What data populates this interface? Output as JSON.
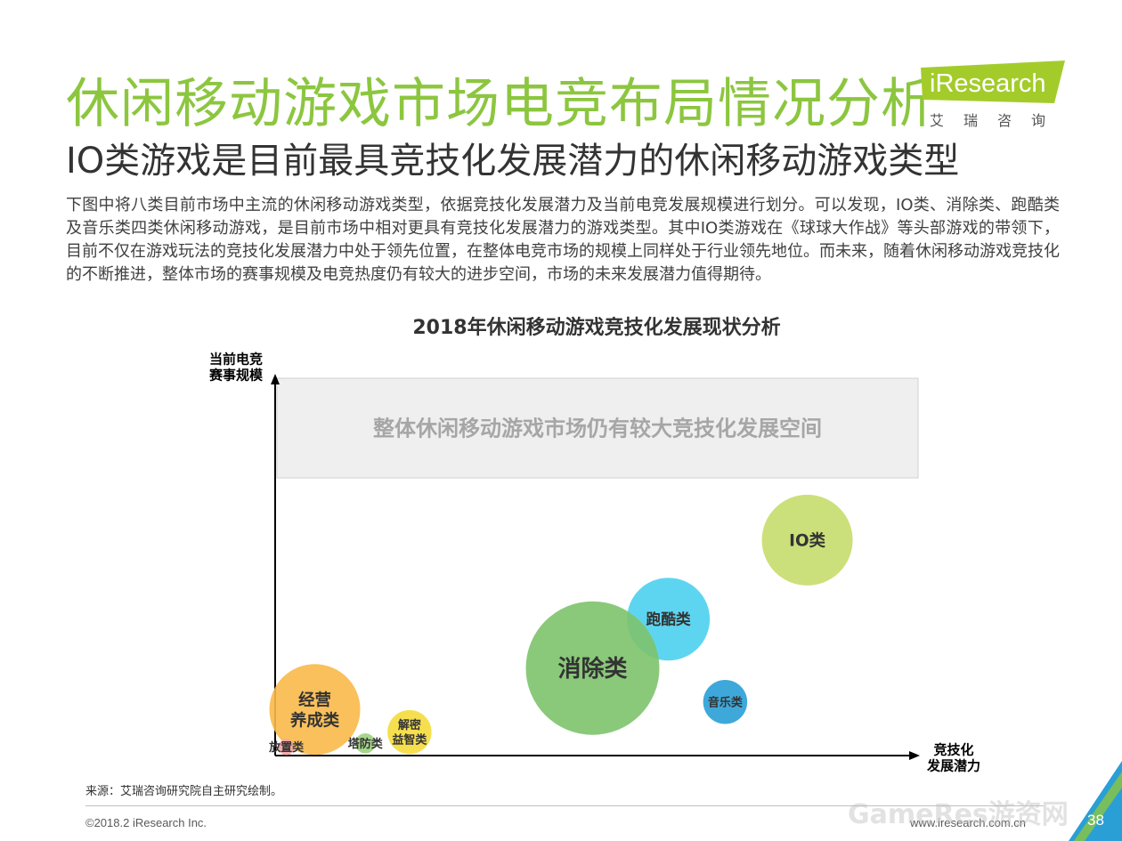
{
  "header": {
    "title": "休闲移动游戏市场电竞布局情况分析",
    "subtitle": "IO类游戏是目前最具竞技化发展潜力的休闲移动游戏类型"
  },
  "logo": {
    "brand": "iResearch",
    "chinese": "艾瑞咨询"
  },
  "intro_text": "下图中将八类目前市场中主流的休闲移动游戏类型，依据竞技化发展潜力及当前电竞发展规模进行划分。可以发现，IO类、消除类、跑酷类及音乐类四类休闲移动游戏，是目前市场中相对更具有竞技化发展潜力的游戏类型。其中IO类游戏在《球球大作战》等头部游戏的带领下，目前不仅在游戏玩法的竞技化发展潜力中处于领先位置，在整体电竞市场的规模上同样处于行业领先地位。而未来，随着休闲移动游戏竞技化的不断推进，整体市场的赛事规模及电竞热度仍有较大的进步空间，市场的未来发展潜力值得期待。",
  "chart_data": {
    "type": "scatter",
    "title": "2018年休闲移动游戏竞技化发展现状分析",
    "ylabel": [
      "当前电竞",
      "赛事规模"
    ],
    "xlabel": [
      "竞技化",
      "发展潜力"
    ],
    "xlim": [
      0,
      100
    ],
    "ylim": [
      0,
      100
    ],
    "grid": false,
    "annotation": "整体休闲移动游戏市场仍有较大竞技化发展空间",
    "points": [
      {
        "label": [
          "IO类"
        ],
        "x": 84,
        "y": 57,
        "size": 0.68,
        "color": "#c5dd6c"
      },
      {
        "label": [
          "跑酷类"
        ],
        "x": 62,
        "y": 36,
        "size": 0.62,
        "color": "#4dd0ee"
      },
      {
        "label": [
          "消除类"
        ],
        "x": 50,
        "y": 23,
        "size": 1.0,
        "color": "#7dc36b"
      },
      {
        "label": [
          "音乐类"
        ],
        "x": 71,
        "y": 14,
        "size": 0.33,
        "color": "#2a9fd6"
      },
      {
        "label": [
          "经营",
          "养成类"
        ],
        "x": 6,
        "y": 12,
        "size": 0.68,
        "color": "#f8b94a"
      },
      {
        "label": [
          "解密",
          "益智类"
        ],
        "x": 21,
        "y": 6,
        "size": 0.33,
        "color": "#f5dc3c"
      },
      {
        "label": [
          "塔防类"
        ],
        "x": 14,
        "y": 3,
        "size": 0.15,
        "color": "#9bd27d"
      },
      {
        "label": [
          "放置类"
        ],
        "x": 1.5,
        "y": 2,
        "size": 0.12,
        "color": "#f4a1a1"
      }
    ]
  },
  "source": "来源：艾瑞咨询研究院自主研究绘制。",
  "footer": {
    "copyright": "©2018.2 iResearch Inc.",
    "website": "www.iresearch.com.cn",
    "page": "38",
    "watermark": "GameRes游资网"
  }
}
